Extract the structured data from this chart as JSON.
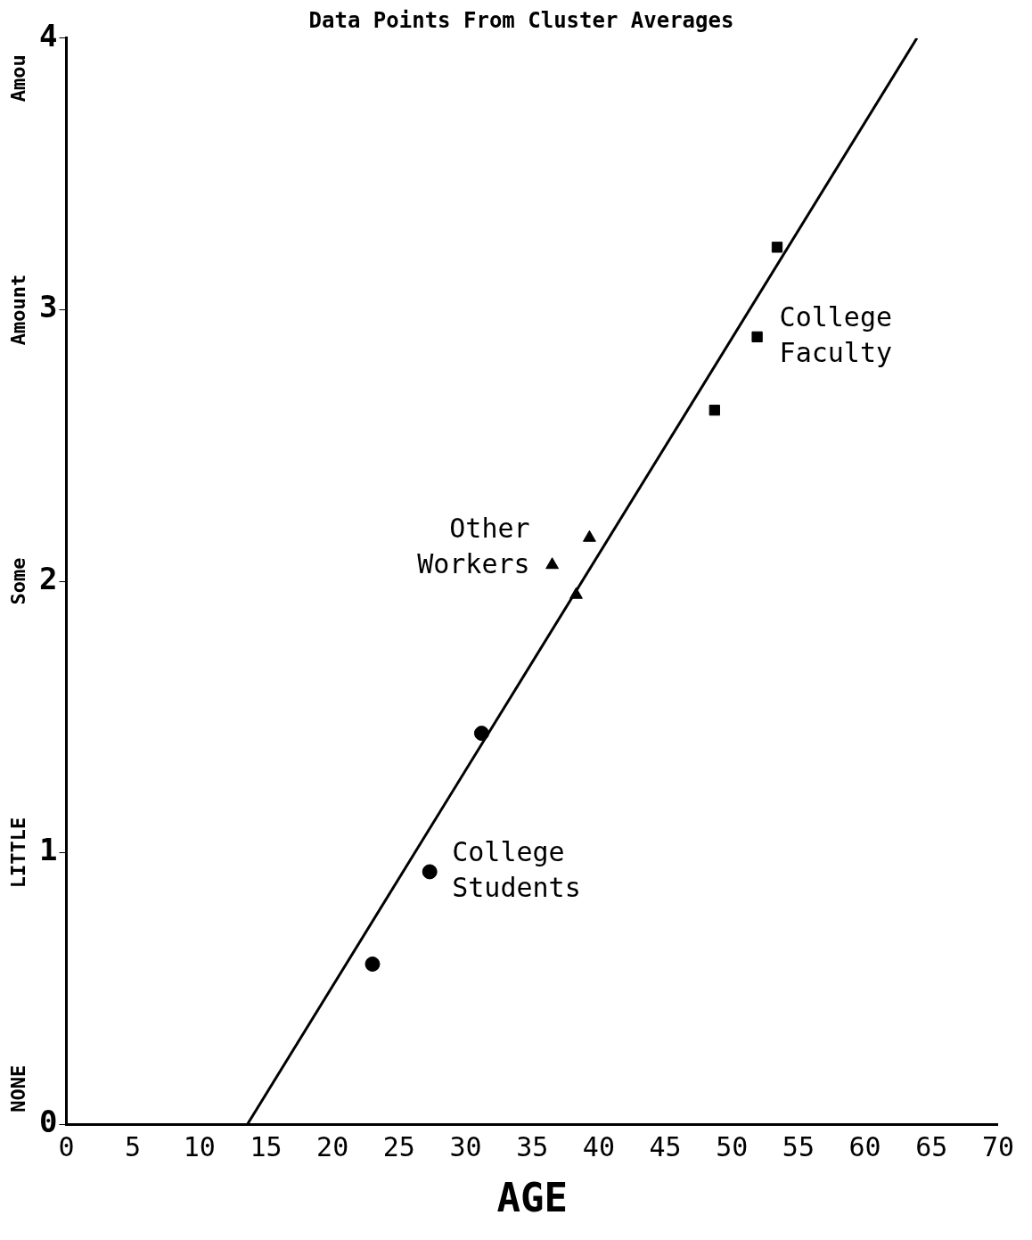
{
  "chart_data": {
    "type": "scatter",
    "title": "Data Points From Cluster Averages",
    "xlabel": "AGE",
    "xlim": [
      0,
      70
    ],
    "xticks": [
      0,
      5,
      10,
      15,
      20,
      25,
      30,
      35,
      40,
      45,
      50,
      55,
      60,
      65,
      70
    ],
    "ylim": [
      0,
      4
    ],
    "yticks": [
      0,
      1,
      2,
      3,
      4
    ],
    "annotations": [
      "NONE",
      "LITTLE",
      "Some",
      "Amount",
      "Amou"
    ],
    "grid": false,
    "legend": false,
    "series": [
      {
        "name": "College Students",
        "color": "#000000",
        "marker": "circle",
        "x": [
          23,
          27.3,
          31.2
        ],
        "values": [
          0.59,
          0.93,
          1.44
        ]
      },
      {
        "name": "Other Workers",
        "color": "#000000",
        "marker": "triangle",
        "x": [
          36.5,
          38.3,
          39.3
        ],
        "values": [
          2.06,
          1.95,
          2.16
        ]
      },
      {
        "name": "College Faculty",
        "color": "#000000",
        "marker": "square",
        "x": [
          48.7,
          51.9,
          53.4
        ],
        "values": [
          2.63,
          2.9,
          3.23
        ]
      },
      {
        "type": "line",
        "color": "#000000",
        "x": [
          13.6,
          63.9
        ],
        "values": [
          0,
          4
        ]
      }
    ]
  }
}
